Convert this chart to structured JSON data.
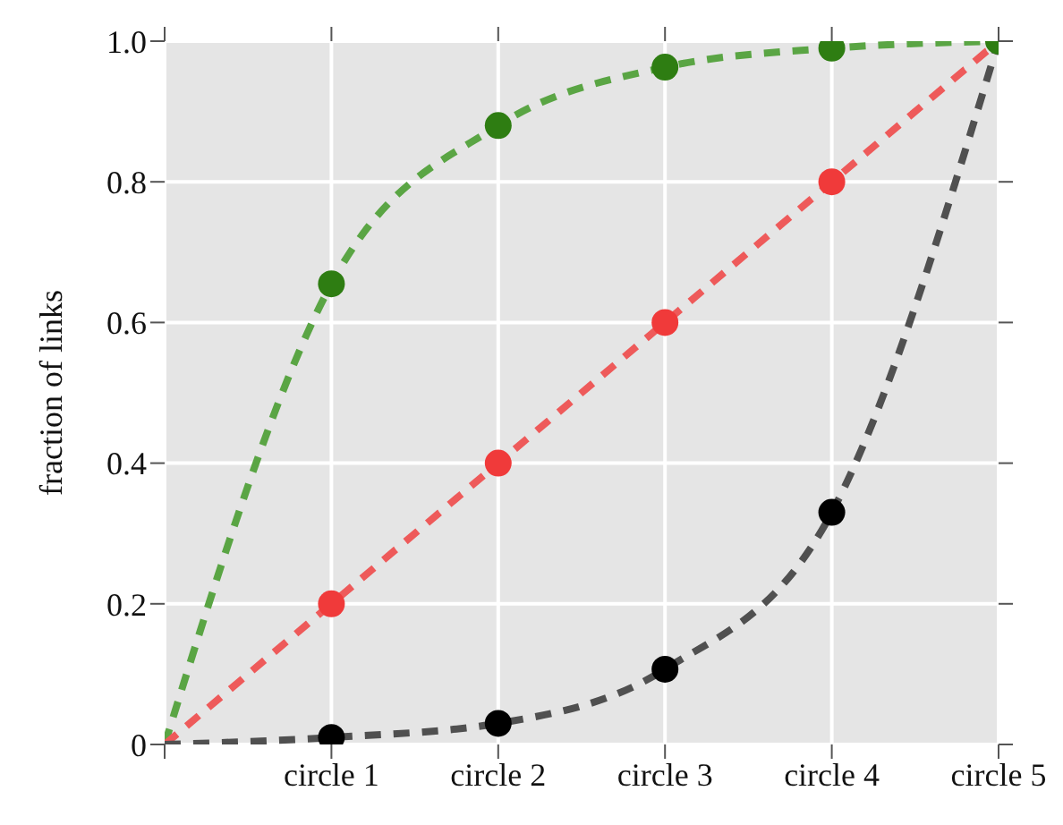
{
  "chart_data": {
    "type": "line",
    "ylabel": "fraction of links",
    "ylim": [
      0,
      1
    ],
    "categories": [
      null,
      "circle 1",
      "circle 2",
      "circle 3",
      "circle 4",
      "circle 5"
    ],
    "yticks": [
      0,
      0.2,
      0.4,
      0.6,
      0.8,
      {
        "value": 1,
        "label": "1.0"
      }
    ],
    "grid": true,
    "legend": false,
    "series": [
      {
        "color": "#5aa544",
        "line_style": "dashed",
        "marker": "none",
        "values": [
          0,
          0.655,
          0.88,
          0.963,
          0.99,
          1
        ]
      },
      {
        "color": "#ee5a5a",
        "line_style": "dashed",
        "marker": "none",
        "values": [
          0,
          0.2,
          0.4,
          0.6,
          0.8,
          1
        ]
      },
      {
        "color": "#505050",
        "line_style": "dashed",
        "marker": "none",
        "values": [
          0,
          0.01,
          0.03,
          0.107,
          0.33,
          1
        ]
      },
      {
        "type": "scatter",
        "color": "#000000",
        "marker": "circle",
        "values": [
          null,
          0.01,
          0.03,
          0.107,
          0.33,
          null
        ]
      },
      {
        "type": "scatter",
        "color": "#f03a3a",
        "marker": "circle",
        "values": [
          null,
          0.2,
          0.4,
          0.6,
          0.8,
          null
        ]
      },
      {
        "type": "scatter",
        "color": "#2e7d12",
        "marker": "circle",
        "values": [
          null,
          0.655,
          0.88,
          0.963,
          0.99,
          1
        ]
      }
    ]
  }
}
